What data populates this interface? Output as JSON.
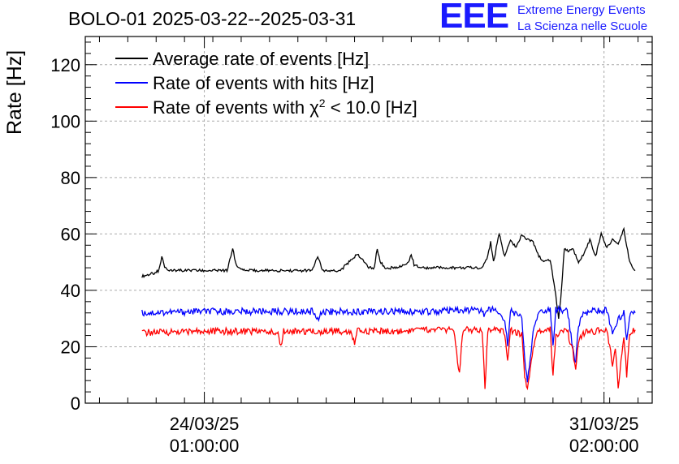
{
  "title": "BOLO-01 2025-03-22--2025-03-31",
  "logo": {
    "mark": "EEE",
    "line1": "Extreme Energy Events",
    "line2": "La Scienza nelle Scuole"
  },
  "chart_data": {
    "type": "line",
    "ylabel": "Rate [Hz]",
    "ylim": [
      0,
      130
    ],
    "yticks": [
      0,
      20,
      40,
      60,
      80,
      100,
      120
    ],
    "xlim_days": [
      0,
      10
    ],
    "xticks": [
      {
        "day": 2.1,
        "line1": "24/03/25",
        "line2": "01:00:00"
      },
      {
        "day": 9.15,
        "line1": "31/03/25",
        "line2": "02:00:00"
      }
    ],
    "grid": true,
    "legend_position": "top-left",
    "legend": [
      {
        "label": "Average rate of events [Hz]",
        "color": "#000000",
        "series": 0
      },
      {
        "label": "Rate of events with hits [Hz]",
        "color": "#0000ff",
        "series": 1
      },
      {
        "label_pre": "Rate of events with ",
        "label_sym": "χ",
        "label_sup": "2",
        "label_post": " < 10.0 [Hz]",
        "color": "#ff0000",
        "series": 2
      }
    ],
    "series": [
      {
        "name": "Average rate of events [Hz]",
        "color": "#000000",
        "x": [
          1.0,
          1.2,
          1.3,
          1.35,
          1.4,
          1.5,
          1.7,
          2.0,
          2.5,
          2.6,
          2.65,
          2.7,
          2.8,
          3.0,
          3.5,
          4.0,
          4.1,
          4.15,
          4.2,
          4.3,
          4.5,
          4.8,
          5.0,
          5.1,
          5.15,
          5.2,
          5.3,
          5.5,
          5.7,
          5.75,
          5.8,
          6.0,
          6.5,
          7.0,
          7.1,
          7.15,
          7.2,
          7.3,
          7.4,
          7.5,
          7.6,
          7.7,
          7.8,
          7.9,
          8.0,
          8.1,
          8.2,
          8.3,
          8.35,
          8.4,
          8.45,
          8.5,
          8.6,
          8.7,
          8.8,
          8.9,
          9.0,
          9.1,
          9.2,
          9.3,
          9.4,
          9.5,
          9.6,
          9.7
        ],
        "y": [
          45,
          46,
          47,
          52,
          48,
          47,
          47,
          47,
          47,
          55,
          50,
          48,
          47,
          47,
          47,
          47,
          52,
          49,
          47,
          47,
          47,
          53,
          48,
          48,
          55,
          50,
          48,
          48,
          50,
          53,
          49,
          48,
          48,
          48,
          52,
          57,
          50,
          60,
          52,
          58,
          55,
          60,
          58,
          57,
          52,
          50,
          51,
          38,
          30,
          40,
          55,
          54,
          55,
          50,
          53,
          58,
          52,
          60,
          55,
          58,
          56,
          62,
          50,
          47
        ]
      },
      {
        "name": "Rate of events with hits [Hz]",
        "color": "#0000ff",
        "x": [
          1.0,
          2.0,
          3.0,
          4.0,
          4.1,
          4.2,
          5.0,
          6.0,
          7.0,
          7.05,
          7.1,
          7.2,
          7.4,
          7.45,
          7.5,
          7.7,
          7.75,
          7.8,
          7.9,
          8.0,
          8.1,
          8.2,
          8.25,
          8.3,
          8.4,
          8.5,
          8.6,
          8.65,
          8.7,
          8.8,
          9.0,
          9.2,
          9.3,
          9.4,
          9.5,
          9.55,
          9.6,
          9.7
        ],
        "y": [
          32,
          32.5,
          32.5,
          32.5,
          30,
          32.5,
          32.5,
          32.5,
          33,
          31,
          33,
          33,
          30,
          20,
          33,
          30,
          15,
          8,
          25,
          33,
          33,
          33,
          20,
          33,
          33,
          33,
          20,
          14,
          28,
          32,
          33,
          33,
          25,
          30,
          32,
          22,
          31,
          32
        ]
      },
      {
        "name": "Rate of events with χ2 < 10.0 [Hz]",
        "color": "#ff0000",
        "x": [
          1.0,
          2.0,
          2.5,
          3.0,
          3.4,
          3.45,
          3.5,
          4.0,
          4.5,
          4.7,
          4.75,
          4.8,
          5.5,
          6.0,
          6.5,
          6.6,
          6.65,
          6.7,
          6.8,
          7.0,
          7.05,
          7.1,
          7.2,
          7.4,
          7.45,
          7.5,
          7.7,
          7.75,
          7.8,
          7.9,
          8.0,
          8.1,
          8.2,
          8.25,
          8.3,
          8.4,
          8.5,
          8.6,
          8.65,
          8.7,
          8.8,
          9.0,
          9.2,
          9.3,
          9.35,
          9.4,
          9.5,
          9.55,
          9.6,
          9.7
        ],
        "y": [
          25,
          25.5,
          25.5,
          25.5,
          25,
          20,
          25.5,
          25.5,
          25.5,
          25,
          21,
          25.5,
          25.5,
          26,
          26,
          10,
          24,
          26,
          26,
          26,
          5,
          26,
          26,
          25,
          14,
          26,
          24,
          10,
          4,
          20,
          26,
          26,
          26,
          10,
          24,
          26,
          26,
          18,
          12,
          22,
          25,
          25.5,
          26,
          14,
          20,
          6,
          24,
          10,
          25,
          26
        ]
      }
    ]
  }
}
